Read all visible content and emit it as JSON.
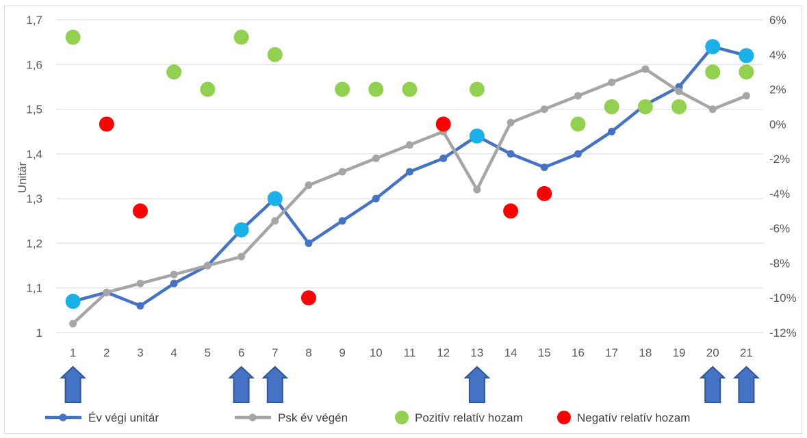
{
  "chart_data": {
    "type": "line",
    "ylabel": "Unitár",
    "categories": [
      "1",
      "2",
      "3",
      "4",
      "5",
      "6",
      "7",
      "8",
      "9",
      "10",
      "11",
      "12",
      "13",
      "14",
      "15",
      "16",
      "17",
      "18",
      "19",
      "20",
      "21"
    ],
    "y_left": {
      "min": 1,
      "max": 1.7,
      "step": 0.1,
      "tick_labels": [
        "1",
        "1,1",
        "1,2",
        "1,3",
        "1,4",
        "1,5",
        "1,6",
        "1,7"
      ]
    },
    "y_right": {
      "min": -12,
      "max": 6,
      "step": 2,
      "tick_labels": [
        "-12%",
        "-10%",
        "-8%",
        "-6%",
        "-4%",
        "-2%",
        "0%",
        "2%",
        "4%",
        "6%"
      ]
    },
    "series": [
      {
        "name": "Év végi unitár",
        "axis": "left",
        "kind": "line",
        "color": "#4472c4",
        "values": [
          1.07,
          1.09,
          1.06,
          1.11,
          1.15,
          1.23,
          1.3,
          1.2,
          1.25,
          1.3,
          1.36,
          1.39,
          1.44,
          1.4,
          1.37,
          1.4,
          1.45,
          1.51,
          1.55,
          1.64,
          1.62
        ],
        "highlight_color": "#1ab0e8",
        "highlight_points": [
          1,
          6,
          7,
          13,
          20,
          21
        ]
      },
      {
        "name": "Psk év végén",
        "axis": "left",
        "kind": "line",
        "color": "#a5a5a5",
        "values": [
          1.02,
          1.09,
          1.11,
          1.13,
          1.15,
          1.17,
          1.25,
          1.33,
          1.36,
          1.39,
          1.42,
          1.45,
          1.32,
          1.47,
          1.5,
          1.53,
          1.56,
          1.59,
          1.54,
          1.5,
          1.53
        ]
      },
      {
        "name": "Pozitív relatív hozam",
        "axis": "right",
        "kind": "scatter",
        "color": "#92d050",
        "points": [
          [
            1,
            5
          ],
          [
            4,
            3
          ],
          [
            5,
            2
          ],
          [
            6,
            5
          ],
          [
            7,
            4
          ],
          [
            9,
            2
          ],
          [
            10,
            2
          ],
          [
            11,
            2
          ],
          [
            13,
            2
          ],
          [
            16,
            0
          ],
          [
            17,
            1
          ],
          [
            18,
            1
          ],
          [
            19,
            1
          ],
          [
            20,
            3
          ],
          [
            21,
            3
          ]
        ]
      },
      {
        "name": "Negatív relatív hozam",
        "axis": "right",
        "kind": "scatter",
        "color": "#ff0000",
        "points": [
          [
            2,
            0
          ],
          [
            3,
            -5
          ],
          [
            8,
            -10
          ],
          [
            12,
            0
          ],
          [
            14,
            -5
          ],
          [
            15,
            -4
          ]
        ]
      }
    ],
    "arrow_markers": [
      1,
      6,
      7,
      13,
      20,
      21
    ],
    "arrow_color": "#4472c4",
    "grid": true,
    "legend_position": "bottom"
  }
}
